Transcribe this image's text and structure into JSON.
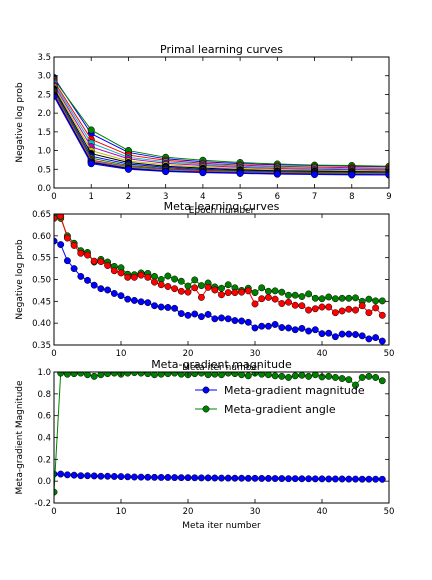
{
  "chart_data": [
    {
      "type": "line",
      "title": "Primal learning curves",
      "xlabel": "Epoch number",
      "ylabel": "Negative log prob",
      "xlim": [
        0,
        9
      ],
      "ylim": [
        0.0,
        3.5
      ],
      "xticks": [
        0,
        1,
        2,
        3,
        4,
        5,
        6,
        7,
        8,
        9
      ],
      "yticks": [
        0.0,
        0.5,
        1.0,
        1.5,
        2.0,
        2.5,
        3.0,
        3.5
      ],
      "x": [
        0,
        1,
        2,
        3,
        4,
        5,
        6,
        7,
        8,
        9
      ],
      "series": [
        {
          "color": "#0000ff",
          "values": [
            2.95,
            1.45,
            0.95,
            0.78,
            0.7,
            0.65,
            0.62,
            0.6,
            0.58,
            0.57
          ]
        },
        {
          "color": "#008000",
          "values": [
            2.9,
            1.55,
            1.0,
            0.82,
            0.74,
            0.68,
            0.64,
            0.61,
            0.6,
            0.58
          ]
        },
        {
          "color": "#ff0000",
          "values": [
            2.85,
            1.3,
            0.88,
            0.74,
            0.66,
            0.61,
            0.58,
            0.56,
            0.54,
            0.53
          ]
        },
        {
          "color": "#00bfbf",
          "values": [
            2.8,
            1.2,
            0.82,
            0.7,
            0.63,
            0.58,
            0.55,
            0.53,
            0.51,
            0.5
          ]
        },
        {
          "color": "#bf00bf",
          "values": [
            2.75,
            1.1,
            0.78,
            0.66,
            0.6,
            0.55,
            0.52,
            0.5,
            0.49,
            0.48
          ]
        },
        {
          "color": "#bfbf00",
          "values": [
            2.7,
            1.0,
            0.72,
            0.62,
            0.56,
            0.52,
            0.49,
            0.47,
            0.46,
            0.45
          ]
        },
        {
          "color": "#000000",
          "values": [
            2.65,
            0.92,
            0.68,
            0.58,
            0.53,
            0.49,
            0.46,
            0.45,
            0.44,
            0.43
          ]
        },
        {
          "color": "#0000ff",
          "values": [
            2.6,
            0.85,
            0.64,
            0.55,
            0.5,
            0.47,
            0.44,
            0.43,
            0.42,
            0.41
          ]
        },
        {
          "color": "#008000",
          "values": [
            2.58,
            0.8,
            0.6,
            0.52,
            0.48,
            0.45,
            0.43,
            0.42,
            0.41,
            0.4
          ]
        },
        {
          "color": "#ff0000",
          "values": [
            2.55,
            0.75,
            0.57,
            0.5,
            0.46,
            0.43,
            0.41,
            0.4,
            0.39,
            0.38
          ]
        },
        {
          "color": "#00bfbf",
          "values": [
            2.52,
            0.72,
            0.55,
            0.48,
            0.44,
            0.42,
            0.4,
            0.39,
            0.38,
            0.37
          ]
        },
        {
          "color": "#bf00bf",
          "values": [
            2.5,
            0.7,
            0.53,
            0.46,
            0.43,
            0.41,
            0.39,
            0.38,
            0.37,
            0.36
          ]
        },
        {
          "color": "#000000",
          "values": [
            2.48,
            0.68,
            0.52,
            0.45,
            0.42,
            0.4,
            0.38,
            0.37,
            0.36,
            0.35
          ]
        },
        {
          "color": "#0000ff",
          "values": [
            2.45,
            0.65,
            0.5,
            0.44,
            0.41,
            0.39,
            0.37,
            0.36,
            0.35,
            0.35
          ]
        }
      ]
    },
    {
      "type": "line",
      "title": "Meta learning curves",
      "xlabel": "Meta iter number",
      "ylabel": "Negative log prob",
      "xlim": [
        0,
        50
      ],
      "ylim": [
        0.35,
        0.65
      ],
      "xticks": [
        0,
        10,
        20,
        30,
        40,
        50
      ],
      "yticks": [
        0.35,
        0.4,
        0.45,
        0.5,
        0.55,
        0.6,
        0.65
      ],
      "x": [
        0,
        1,
        2,
        3,
        4,
        5,
        6,
        7,
        8,
        9,
        10,
        11,
        12,
        13,
        14,
        15,
        16,
        17,
        18,
        19,
        20,
        21,
        22,
        23,
        24,
        25,
        26,
        27,
        28,
        29,
        30,
        31,
        32,
        33,
        34,
        35,
        36,
        37,
        38,
        39,
        40,
        41,
        42,
        43,
        44,
        45,
        46,
        47,
        48,
        49
      ],
      "series": [
        {
          "color": "#0000ff",
          "values": [
            0.588,
            0.58,
            0.543,
            0.525,
            0.507,
            0.498,
            0.487,
            0.479,
            0.476,
            0.468,
            0.463,
            0.455,
            0.452,
            0.449,
            0.447,
            0.44,
            0.437,
            0.436,
            0.434,
            0.422,
            0.418,
            0.421,
            0.415,
            0.42,
            0.41,
            0.412,
            0.41,
            0.406,
            0.405,
            0.402,
            0.389,
            0.393,
            0.393,
            0.397,
            0.39,
            0.389,
            0.385,
            0.388,
            0.382,
            0.385,
            0.376,
            0.377,
            0.369,
            0.375,
            0.375,
            0.374,
            0.371,
            0.364,
            0.367,
            0.359
          ]
        },
        {
          "color": "#008000",
          "values": [
            0.65,
            0.64,
            0.6,
            0.583,
            0.566,
            0.562,
            0.54,
            0.546,
            0.54,
            0.53,
            0.527,
            0.512,
            0.511,
            0.515,
            0.514,
            0.507,
            0.5,
            0.508,
            0.501,
            0.496,
            0.485,
            0.499,
            0.486,
            0.492,
            0.483,
            0.48,
            0.488,
            0.481,
            0.475,
            0.48,
            0.47,
            0.481,
            0.473,
            0.474,
            0.471,
            0.464,
            0.464,
            0.461,
            0.467,
            0.457,
            0.456,
            0.46,
            0.456,
            0.457,
            0.457,
            0.458,
            0.45,
            0.455,
            0.451,
            0.451
          ]
        },
        {
          "color": "#ff0000",
          "values": [
            0.64,
            0.645,
            0.595,
            0.578,
            0.56,
            0.556,
            0.542,
            0.541,
            0.532,
            0.52,
            0.515,
            0.505,
            0.505,
            0.51,
            0.505,
            0.494,
            0.488,
            0.484,
            0.479,
            0.473,
            0.471,
            0.481,
            0.459,
            0.482,
            0.476,
            0.465,
            0.47,
            0.47,
            0.471,
            0.474,
            0.444,
            0.456,
            0.459,
            0.455,
            0.445,
            0.448,
            0.441,
            0.44,
            0.43,
            0.433,
            0.437,
            0.437,
            0.424,
            0.428,
            0.432,
            0.43,
            0.44,
            0.424,
            0.435,
            0.418
          ]
        }
      ]
    },
    {
      "type": "line",
      "title": "Meta-gradient magnitude",
      "xlabel": "Meta iter number",
      "ylabel": "Meta-gradient Magnitude",
      "xlim": [
        0,
        50
      ],
      "ylim": [
        -0.2,
        1.0
      ],
      "xticks": [
        0,
        10,
        20,
        30,
        40,
        50
      ],
      "yticks": [
        -0.2,
        0.0,
        0.2,
        0.4,
        0.6,
        0.8,
        1.0
      ],
      "legend": "upper right",
      "x": [
        0,
        1,
        2,
        3,
        4,
        5,
        6,
        7,
        8,
        9,
        10,
        11,
        12,
        13,
        14,
        15,
        16,
        17,
        18,
        19,
        20,
        21,
        22,
        23,
        24,
        25,
        26,
        27,
        28,
        29,
        30,
        31,
        32,
        33,
        34,
        35,
        36,
        37,
        38,
        39,
        40,
        41,
        42,
        43,
        44,
        45,
        46,
        47,
        48,
        49
      ],
      "series": [
        {
          "name": "Meta-gradient magnitude",
          "color": "#0000ff",
          "values": [
            0.065,
            0.065,
            0.058,
            0.055,
            0.05,
            0.05,
            0.048,
            0.045,
            0.045,
            0.043,
            0.042,
            0.04,
            0.038,
            0.037,
            0.036,
            0.035,
            0.034,
            0.034,
            0.033,
            0.032,
            0.032,
            0.031,
            0.03,
            0.03,
            0.029,
            0.028,
            0.028,
            0.027,
            0.027,
            0.026,
            0.026,
            0.025,
            0.025,
            0.024,
            0.024,
            0.023,
            0.023,
            0.022,
            0.022,
            0.021,
            0.021,
            0.02,
            0.02,
            0.02,
            0.019,
            0.019,
            0.018,
            0.018,
            0.018,
            0.017
          ]
        },
        {
          "name": "Meta-gradient angle",
          "color": "#008000",
          "values": [
            -0.1,
            0.99,
            0.98,
            0.985,
            0.99,
            0.975,
            0.96,
            0.975,
            0.985,
            0.99,
            0.98,
            0.99,
            0.995,
            0.99,
            0.985,
            0.975,
            0.98,
            0.985,
            0.99,
            0.98,
            0.975,
            0.985,
            0.99,
            0.975,
            0.98,
            0.975,
            0.99,
            0.985,
            0.975,
            0.965,
            0.99,
            0.98,
            0.975,
            0.965,
            0.96,
            0.95,
            0.965,
            0.97,
            0.96,
            0.975,
            0.955,
            0.96,
            0.95,
            0.94,
            0.93,
            0.88,
            0.95,
            0.96,
            0.95,
            0.92
          ]
        }
      ]
    }
  ]
}
